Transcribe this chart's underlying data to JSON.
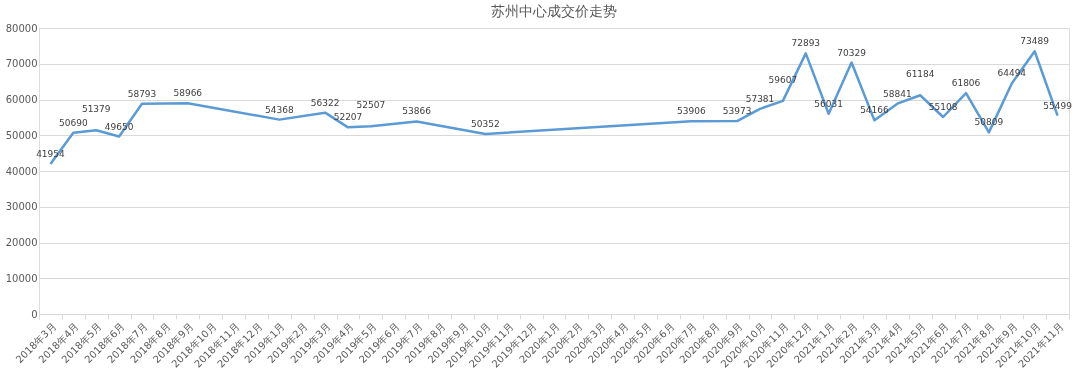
{
  "chart_data": {
    "type": "line",
    "title": "苏州中心成交价走势",
    "categories": [
      "2018年3月",
      "2018年4月",
      "2018年5月",
      "2018年6月",
      "2018年7月",
      "2018年8月",
      "2018年9月",
      "2018年10月",
      "2018年11月",
      "2018年12月",
      "2019年1月",
      "2019年2月",
      "2019年3月",
      "2019年4月",
      "2019年5月",
      "2019年6月",
      "2019年7月",
      "2019年8月",
      "2019年9月",
      "2019年10月",
      "2019年11月",
      "2019年12月",
      "2020年1月",
      "2020年2月",
      "2020年3月",
      "2020年4月",
      "2020年5月",
      "2020年6月",
      "2020年7月",
      "2020年8月",
      "2020年9月",
      "2020年10月",
      "2020年11月",
      "2020年12月",
      "2021年1月",
      "2021年2月",
      "2021年3月",
      "2021年4月",
      "2021年5月",
      "2021年6月",
      "2021年7月",
      "2021年8月",
      "2021年9月",
      "2021年10月",
      "2021年11月"
    ],
    "series": [
      {
        "color": "#5b9bd5",
        "values": [
          41954,
          50690,
          51379,
          49650,
          58793,
          null,
          58966,
          null,
          null,
          null,
          54368,
          null,
          56322,
          52207,
          52507,
          null,
          53866,
          null,
          null,
          50352,
          null,
          null,
          null,
          null,
          null,
          null,
          null,
          null,
          53906,
          null,
          53973,
          57381,
          59607,
          72893,
          56031,
          70329,
          54166,
          58841,
          61184,
          55108,
          61806,
          50809,
          64494,
          73489,
          55499
        ]
      }
    ],
    "ylim": [
      0,
      80000
    ],
    "yticks": [
      0,
      10000,
      20000,
      30000,
      40000,
      50000,
      60000,
      70000,
      80000
    ],
    "grid": "y",
    "legend": false,
    "marker": "none",
    "line_style": "solid",
    "data_labels": true
  }
}
